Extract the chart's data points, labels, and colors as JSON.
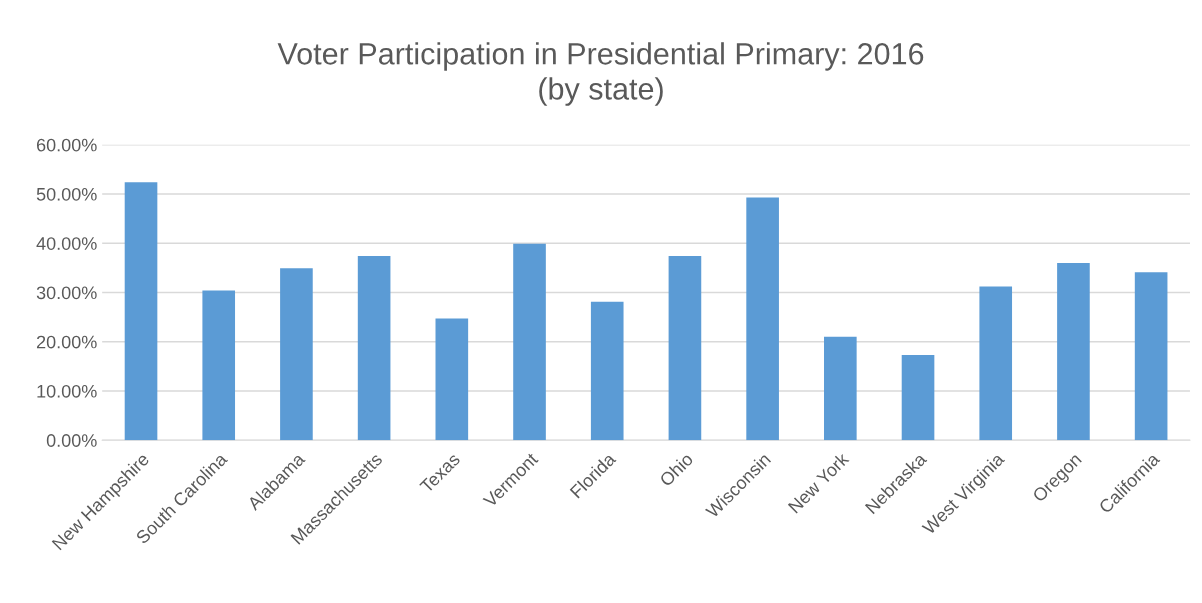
{
  "chart_data": {
    "type": "bar",
    "title": "Voter Participation in Presidential Primary: 2016\n(by state)",
    "categories": [
      "New Hampshire",
      "South Carolina",
      "Alabama",
      "Massachusetts",
      "Texas",
      "Vermont",
      "Florida",
      "Ohio",
      "Wisconsin",
      "New York",
      "Nebraska",
      "West Virginia",
      "Oregon",
      "California"
    ],
    "values": [
      52.4,
      30.4,
      34.9,
      37.4,
      24.7,
      39.9,
      28.1,
      37.4,
      49.3,
      21.0,
      17.3,
      31.2,
      36.0,
      34.1
    ],
    "color": "#5b9bd5",
    "ylim": [
      0,
      60
    ],
    "yticks": [
      {
        "value": 0,
        "label": "0.00%"
      },
      {
        "value": 10,
        "label": "10.00%"
      },
      {
        "value": 20,
        "label": "20.00%"
      },
      {
        "value": 30,
        "label": "30.00%"
      },
      {
        "value": 40,
        "label": "40.00%"
      },
      {
        "value": 50,
        "label": "50.00%"
      },
      {
        "value": 60,
        "label": "60.00%"
      }
    ],
    "grid": "y",
    "legend": false
  }
}
